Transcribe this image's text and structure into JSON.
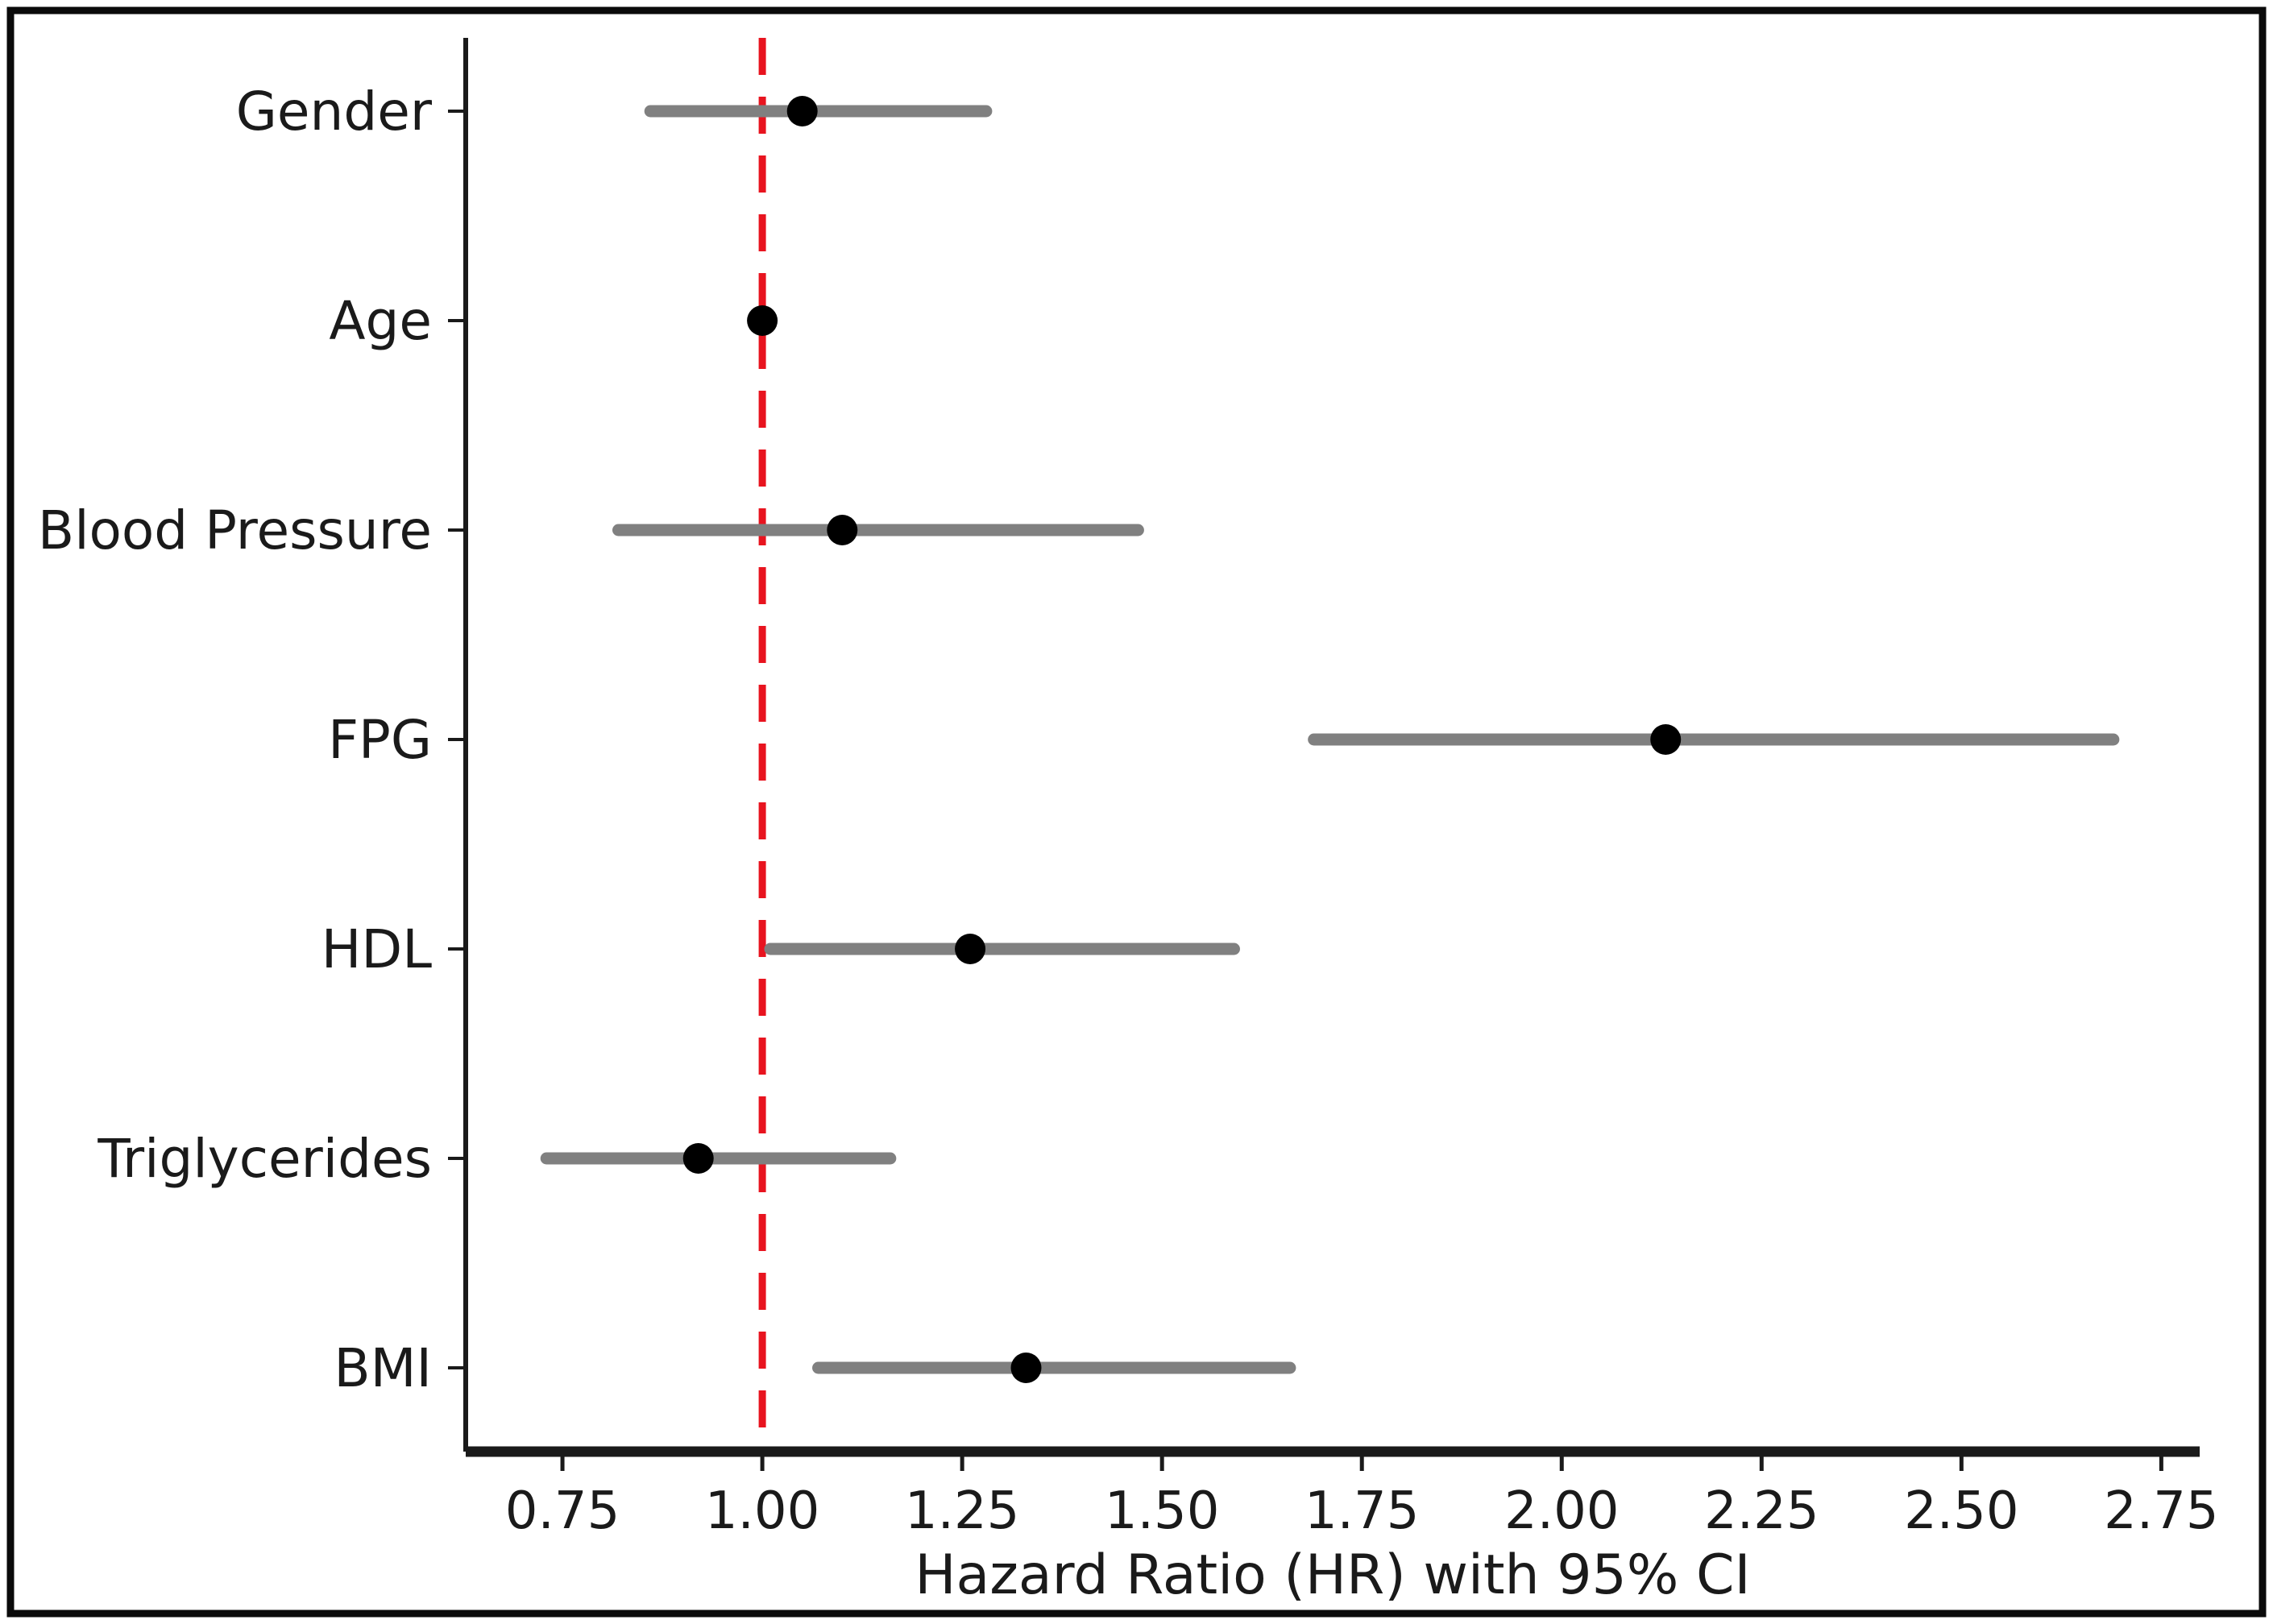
{
  "figure": {
    "background_color": "#ffffff",
    "border_color": "#0a0a0a"
  },
  "chart_data": {
    "type": "scatter",
    "subtype": "forest-plot",
    "title": "",
    "xlabel": "Hazard Ratio (HR) with 95% CI",
    "ylabel": "",
    "categories": [
      "Gender",
      "Age",
      "Blood Pressure",
      "FPG",
      "HDL",
      "Triglycerides",
      "BMI"
    ],
    "series": [
      {
        "name": "Hazard Ratio (HR)",
        "values": [
          1.05,
          1.0,
          1.1,
          2.13,
          1.26,
          0.92,
          1.33
        ],
        "ci_low": [
          0.86,
          0.99,
          0.82,
          1.69,
          1.01,
          0.73,
          1.07
        ],
        "ci_high": [
          1.28,
          1.01,
          1.47,
          2.69,
          1.59,
          1.16,
          1.66
        ]
      }
    ],
    "x_ticks": [
      0.75,
      1.0,
      1.25,
      1.5,
      1.75,
      2.0,
      2.25,
      2.5,
      2.75
    ],
    "x_tick_labels": [
      "0.75",
      "1.00",
      "1.25",
      "1.50",
      "1.75",
      "2.00",
      "2.25",
      "2.50",
      "2.75"
    ],
    "xlim": [
      0.629,
      2.798
    ],
    "grid": false,
    "legend": "none",
    "reference_line": {
      "x": 1.0,
      "style": "dashed",
      "color": "#e8141f"
    },
    "marker_color": "#000000",
    "ci_color": "#808080"
  }
}
